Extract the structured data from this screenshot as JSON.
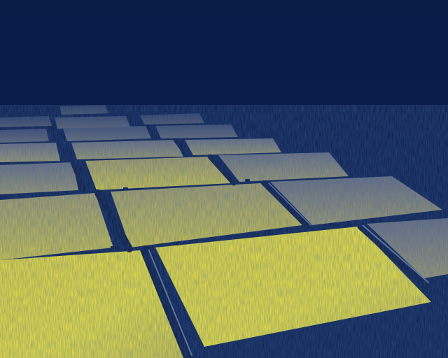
{
  "image": {
    "subject": "solar-panel-array",
    "rendering": "false-color-thermal",
    "palette": {
      "sky": "#0b1f4f",
      "ground": "#0d2150",
      "gap": "#0a1a40",
      "cool_panel": "#9d9a73",
      "warm_panel": "#c9c14a",
      "hot_panel": "#f4e83a",
      "rail_highlight": "#6b7aa6"
    }
  }
}
